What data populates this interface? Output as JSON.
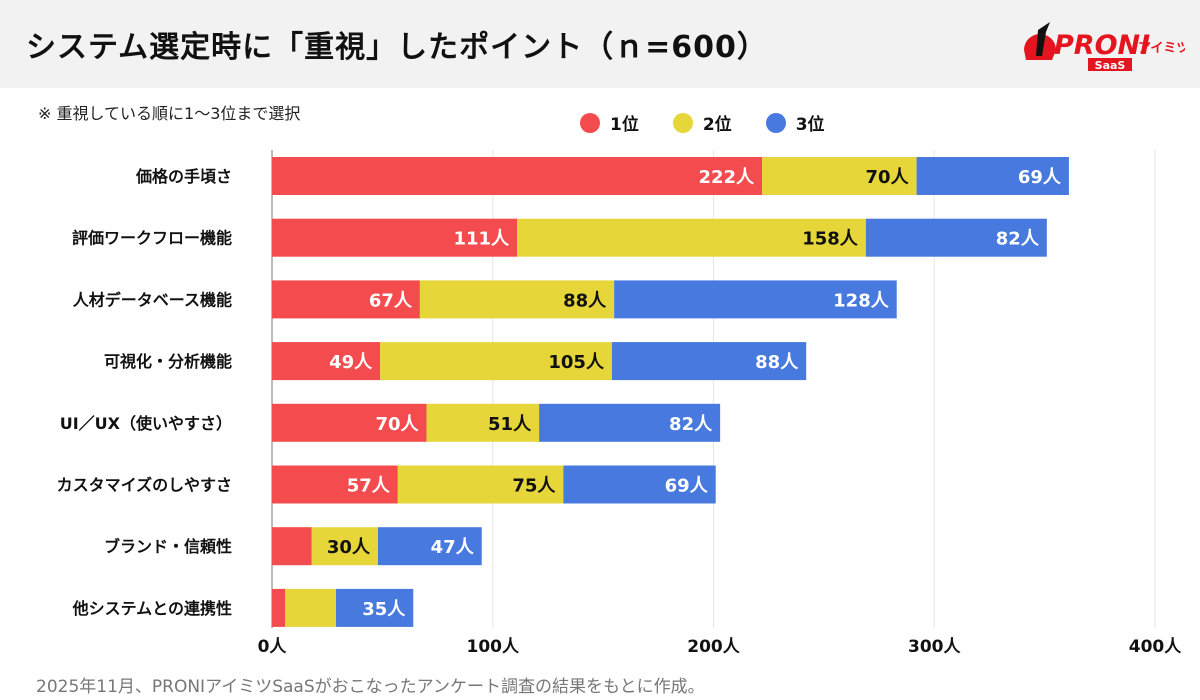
{
  "header": {
    "title": "システム選定時に「重視」したポイント（ｎ=600）"
  },
  "logo": {
    "text": "PRONI",
    "sub": "アイミツ",
    "badge": "SaaS",
    "brand_color": "#e4151f"
  },
  "note": "※ 重視している順に1〜3位まで選択",
  "footer": "2025年11月、PRONIアイミツSaaSがおこなったアンケート調査の結果をもとに作成。",
  "chart_data": {
    "type": "bar",
    "orientation": "horizontal",
    "stacked": true,
    "unit": "人",
    "categories": [
      "価格の手頃さ",
      "評価ワークフロー機能",
      "人材データベース機能",
      "可視化・分析機能",
      "UI／UX（使いやすさ）",
      "カスタマイズのしやすさ",
      "ブランド・信頼性",
      "他システムとの連携性"
    ],
    "series": [
      {
        "name": "1位",
        "color": "#f44c4e",
        "text_color": "#ffffff",
        "values": [
          222,
          111,
          67,
          49,
          70,
          57,
          18,
          6
        ],
        "labels": [
          "222人",
          "111人",
          "67人",
          "49人",
          "70人",
          "57人",
          "",
          ""
        ]
      },
      {
        "name": "2位",
        "color": "#e6d63a",
        "text_color": "#111111",
        "values": [
          70,
          158,
          88,
          105,
          51,
          75,
          30,
          23
        ],
        "labels": [
          "70人",
          "158人",
          "88人",
          "105人",
          "51人",
          "75人",
          "30人",
          ""
        ]
      },
      {
        "name": "3位",
        "color": "#4879de",
        "text_color": "#ffffff",
        "values": [
          69,
          82,
          128,
          88,
          82,
          69,
          47,
          35
        ],
        "labels": [
          "69人",
          "82人",
          "128人",
          "88人",
          "82人",
          "69人",
          "47人",
          "35人"
        ]
      }
    ],
    "xlim": [
      0,
      400
    ],
    "xticks": [
      0,
      100,
      200,
      300,
      400
    ],
    "xtick_labels": [
      "0人",
      "100人",
      "200人",
      "300人",
      "400人"
    ],
    "grid": true,
    "legend_position": "top"
  }
}
